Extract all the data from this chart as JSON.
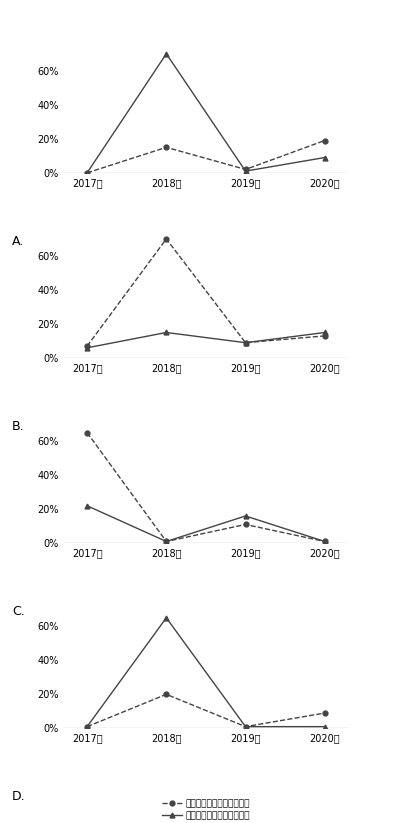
{
  "years": [
    "2017年",
    "2018年",
    "2019年",
    "2020年"
  ],
  "charts": [
    {
      "label": "A.",
      "dashed_label": "国际重要湿地面积同比增速",
      "solid_label": "国际重要湿地数量同比增速",
      "dashed": [
        0,
        15,
        2,
        19
      ],
      "solid": [
        0,
        70,
        1,
        9
      ],
      "ylim": [
        0,
        75
      ],
      "yticks": [
        0,
        20,
        40,
        60
      ]
    },
    {
      "label": "B.",
      "dashed_label": "国际重要湿地面积同比增速",
      "solid_label": "国际重要湿地数量同比增速",
      "dashed": [
        7,
        70,
        9,
        13
      ],
      "solid": [
        6,
        15,
        9,
        15
      ],
      "ylim": [
        0,
        75
      ],
      "yticks": [
        0,
        20,
        40,
        60
      ]
    },
    {
      "label": "C.",
      "dashed_label": "国际重要湿地面积同比增速",
      "solid_label": "国际重要湿地数量同比增速",
      "dashed": [
        65,
        1,
        11,
        1
      ],
      "solid": [
        22,
        1,
        16,
        1
      ],
      "ylim": [
        0,
        75
      ],
      "yticks": [
        0,
        20,
        40,
        60
      ]
    },
    {
      "label": "D.",
      "dashed_label": "国际重要湿地面积同比增速",
      "solid_label": "国际重要湿地数量同比增速",
      "dashed": [
        1,
        20,
        1,
        9
      ],
      "solid": [
        1,
        65,
        1,
        1
      ],
      "ylim": [
        0,
        75
      ],
      "yticks": [
        0,
        20,
        40,
        60
      ]
    }
  ],
  "bg_color": "#ffffff",
  "line_color": "#444444",
  "fontsize_legend": 6.5,
  "fontsize_tick": 7,
  "fontsize_label": 9
}
